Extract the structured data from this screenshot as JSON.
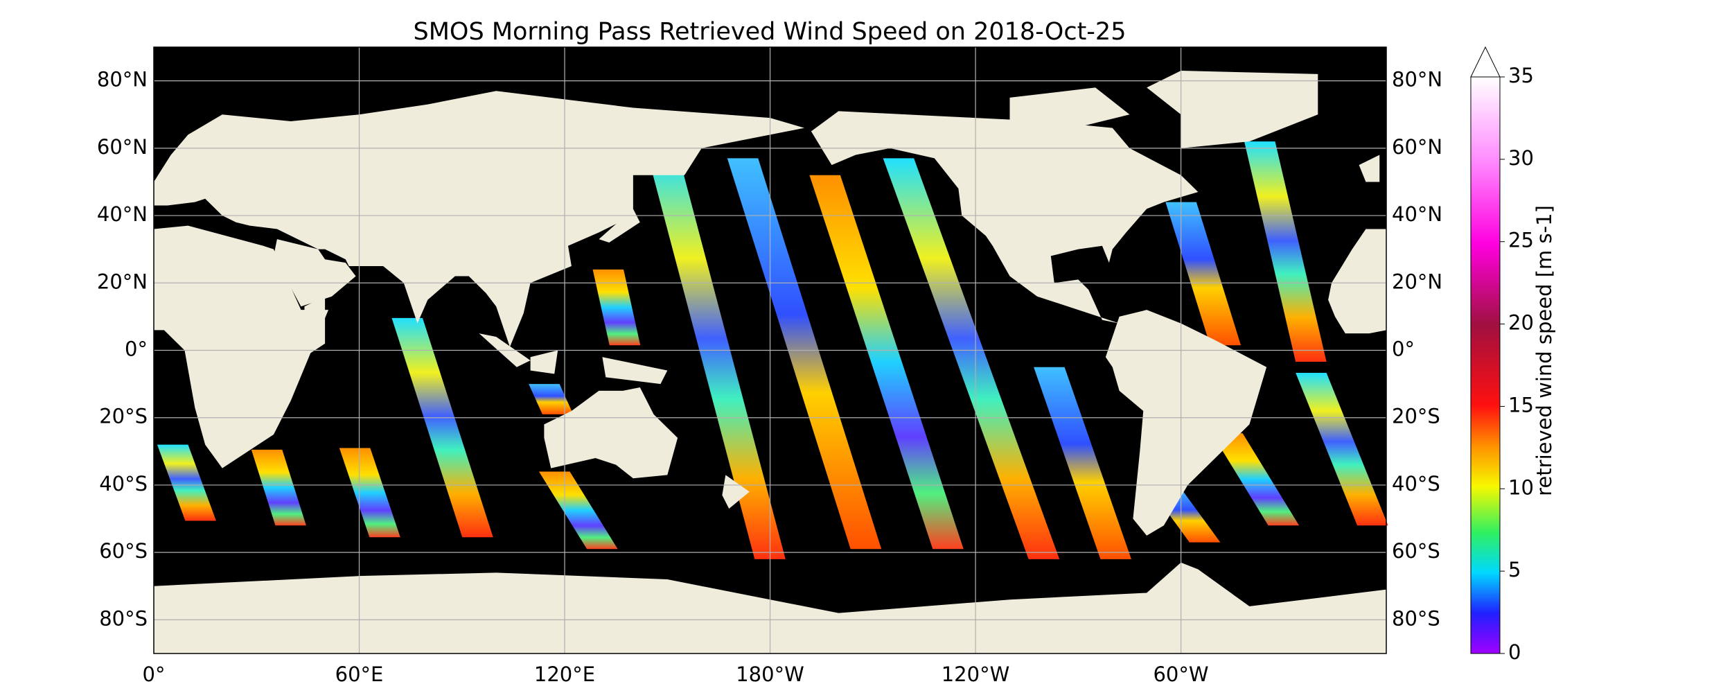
{
  "title": "SMOS Morning Pass Retrieved Wind Speed on 2018-Oct-25",
  "map": {
    "lat_ticks": [
      {
        "value": 80,
        "label": "80°N"
      },
      {
        "value": 60,
        "label": "60°N"
      },
      {
        "value": 40,
        "label": "40°N"
      },
      {
        "value": 20,
        "label": "20°N"
      },
      {
        "value": 0,
        "label": "0°"
      },
      {
        "value": -20,
        "label": "20°S"
      },
      {
        "value": -40,
        "label": "40°S"
      },
      {
        "value": -60,
        "label": "60°S"
      },
      {
        "value": -80,
        "label": "80°S"
      }
    ],
    "lon_ticks": [
      {
        "value": 0,
        "label": "0°"
      },
      {
        "value": 60,
        "label": "60°E"
      },
      {
        "value": 120,
        "label": "120°E"
      },
      {
        "value": -180,
        "label": "180°W"
      },
      {
        "value": -120,
        "label": "120°W"
      },
      {
        "value": -60,
        "label": "60°W"
      }
    ]
  },
  "colorbar": {
    "label": "retrieved wind speed [m s-1]",
    "lim": [
      0,
      35
    ],
    "ticks": [
      0,
      5,
      10,
      15,
      20,
      25,
      30,
      35
    ]
  }
}
